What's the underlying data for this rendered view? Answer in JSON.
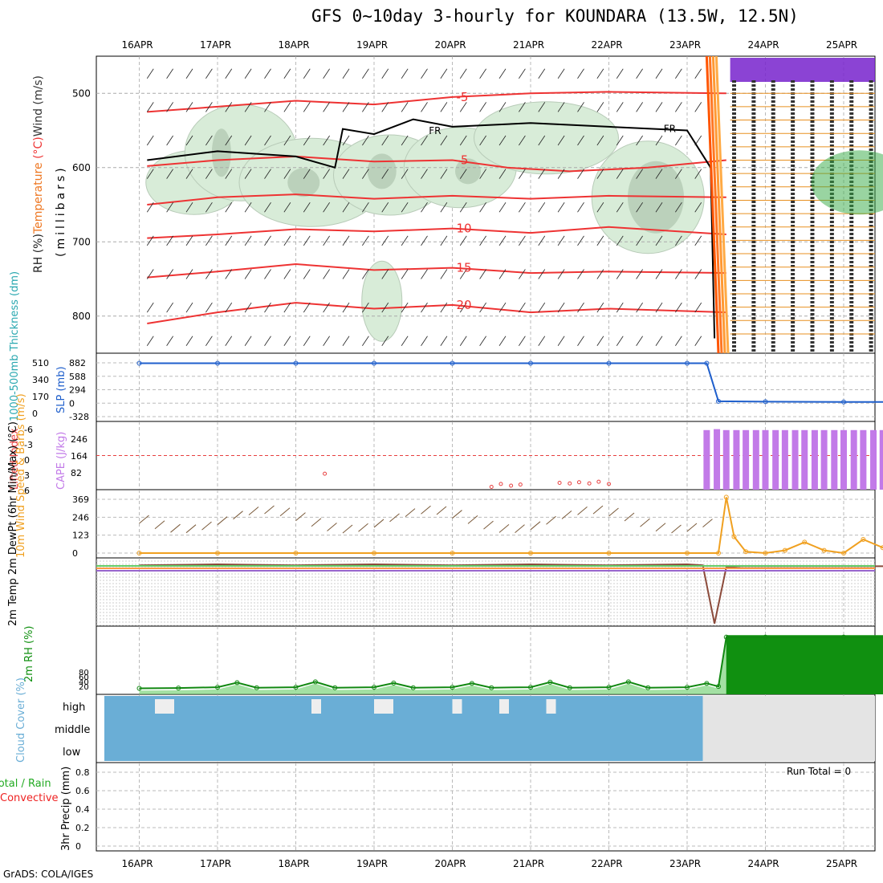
{
  "header": {
    "title": "GFS 0~10day 3-hourly for KOUNDARA (13.5W, 12.5N)",
    "credit": "GrADS: COLA/IGES"
  },
  "colors": {
    "temperature": "#ee3333",
    "freezing": "#000000",
    "rh_fill": "#d8ecd8",
    "rh_dark": "#a8c0a8",
    "slp": "#1f5fcc",
    "thickness": "#2aa8b0",
    "cape": "#c27ae8",
    "lifted_index": "#e84040",
    "wind_speed": "#f0a020",
    "barb": "#7a5a3a",
    "rh2m": "#109010",
    "cloud": "#6aaed6",
    "precip_total": "#22aa22",
    "precip_conv": "#ee2222"
  },
  "chart_data": [
    {
      "panel": "upper-air",
      "type": "contour",
      "x_ticks": [
        "16APR",
        "17APR",
        "18APR",
        "19APR",
        "20APR",
        "21APR",
        "22APR",
        "23APR",
        "24APR",
        "25APR"
      ],
      "y_label_parts": [
        {
          "text": "RH (%)",
          "color": "#222222",
          "bg": "#22bb22"
        },
        {
          "text": "Temperature",
          "color": "#ee7722"
        },
        {
          "text": " (°C)",
          "color": "#ee3333"
        },
        {
          "text": "Wind (m/s)",
          "color": "#333333"
        }
      ],
      "y_axis_title": "(millibars)",
      "y_ticks": [
        500,
        600,
        700,
        800
      ],
      "ylim": [
        450,
        850
      ],
      "x_days": [
        0,
        10
      ],
      "temperature_contours": [
        {
          "level": -5,
          "label": "-5",
          "points": [
            [
              0.1,
              525
            ],
            [
              1,
              518
            ],
            [
              2,
              510
            ],
            [
              3,
              515
            ],
            [
              4,
              505
            ],
            [
              5,
              500
            ],
            [
              6,
              498
            ],
            [
              7.5,
              500
            ]
          ]
        },
        {
          "level": -5,
          "label": "-5",
          "points": [
            [
              0.1,
              598
            ],
            [
              1,
              590
            ],
            [
              2,
              585
            ],
            [
              3,
              592
            ],
            [
              4,
              590
            ],
            [
              4.7,
              600
            ],
            [
              5.5,
              605
            ],
            [
              6.5,
              600
            ],
            [
              7.5,
              590
            ]
          ]
        },
        {
          "level": 0,
          "label": "",
          "points": [
            [
              0.1,
              650
            ],
            [
              1,
              640
            ],
            [
              2,
              636
            ],
            [
              3,
              642
            ],
            [
              4,
              638
            ],
            [
              5,
              642
            ],
            [
              6,
              638
            ],
            [
              7.5,
              640
            ]
          ]
        },
        {
          "level": 10,
          "label": "10",
          "points": [
            [
              0.1,
              695
            ],
            [
              1,
              690
            ],
            [
              2,
              683
            ],
            [
              3,
              686
            ],
            [
              4,
              682
            ],
            [
              5,
              688
            ],
            [
              6,
              680
            ],
            [
              7.5,
              690
            ]
          ]
        },
        {
          "level": 15,
          "label": "15",
          "points": [
            [
              0.1,
              748
            ],
            [
              1,
              740
            ],
            [
              2,
              730
            ],
            [
              3,
              738
            ],
            [
              4,
              735
            ],
            [
              5,
              742
            ],
            [
              6,
              740
            ],
            [
              7.5,
              742
            ]
          ]
        },
        {
          "level": 20,
          "label": "20",
          "points": [
            [
              0.1,
              810
            ],
            [
              1,
              795
            ],
            [
              2,
              782
            ],
            [
              3,
              790
            ],
            [
              4,
              785
            ],
            [
              5,
              795
            ],
            [
              6,
              790
            ],
            [
              7.5,
              795
            ]
          ]
        }
      ],
      "freezing_level": {
        "label": "FR",
        "points": [
          [
            0.1,
            590
          ],
          [
            1,
            578
          ],
          [
            2,
            585
          ],
          [
            2.5,
            600
          ],
          [
            2.6,
            548
          ],
          [
            3,
            555
          ],
          [
            3.5,
            535
          ],
          [
            4,
            545
          ],
          [
            5,
            540
          ],
          [
            6,
            545
          ],
          [
            7,
            550
          ],
          [
            7.3,
            600
          ],
          [
            7.35,
            830
          ]
        ]
      }
    },
    {
      "panel": "slp-thickness",
      "type": "line",
      "ylabel_left": "1000-500mb Thickness (dm)",
      "ylabel_slp": "SLP (mb)",
      "y_ticks_thickness": [
        "510",
        "340",
        "170",
        "0"
      ],
      "y_ticks_slp": [
        "882",
        "588",
        "294",
        "0",
        "-328"
      ],
      "series": [
        {
          "name": "SLP",
          "x": [
            0,
            1,
            2,
            3,
            4,
            5,
            6,
            7,
            7.25,
            7.4,
            8,
            9,
            10.2
          ],
          "values": [
            882,
            882,
            882,
            882,
            882,
            882,
            882,
            882,
            882,
            20,
            10,
            5,
            5
          ]
        }
      ],
      "ylim": [
        -328,
        1000
      ]
    },
    {
      "panel": "cape-li",
      "type": "bar",
      "ylabel_li": "Lifted Index",
      "ylabel_cape": "CAPE (J/kg)",
      "y_ticks_li": [
        "-6",
        "-3",
        "0",
        "3",
        "6"
      ],
      "y_ticks_cape": [
        "246",
        "164",
        "82"
      ],
      "cape_bar_days": [
        7.25,
        7.38,
        7.5,
        7.63,
        7.75,
        7.88,
        8.0,
        8.13,
        8.25,
        8.38,
        8.5,
        8.63,
        8.75,
        8.88,
        9.0,
        9.13,
        9.25,
        9.38,
        9.5,
        9.63,
        9.75,
        9.88,
        10.0,
        10.13,
        10.25
      ],
      "cape_values": [
        310,
        315,
        310,
        310,
        310,
        310,
        310,
        310,
        310,
        310,
        310,
        310,
        310,
        310,
        310,
        310,
        310,
        310,
        310,
        310,
        310,
        310,
        310,
        310,
        310
      ],
      "li_bump_days": [
        2.37,
        4.5,
        4.62,
        4.75,
        4.87,
        5.37,
        5.5,
        5.62,
        5.75,
        5.87,
        6.0
      ],
      "li_bump_values": [
        3.2,
        5.5,
        5.0,
        5.3,
        5.1,
        4.8,
        4.9,
        4.7,
        4.9,
        4.6,
        5.0
      ],
      "ylim_li": [
        6,
        -6
      ]
    },
    {
      "panel": "wind10m",
      "type": "line",
      "ylabel": "10m Wind Speed & Barbs (m/s)",
      "y_ticks": [
        "369",
        "246",
        "123",
        "0"
      ],
      "series": [
        {
          "name": "10m Wind Speed",
          "x": [
            0,
            1,
            2,
            3,
            4,
            5,
            6,
            7,
            7.4,
            7.5,
            7.6,
            7.75,
            8,
            8.25,
            8.5,
            8.75,
            9,
            9.25,
            9.5,
            9.75,
            10,
            10.25
          ],
          "values": [
            0,
            0,
            0,
            0,
            0,
            0,
            0,
            0,
            0,
            410,
            120,
            10,
            0,
            20,
            80,
            20,
            0,
            100,
            40,
            0,
            80,
            50
          ]
        }
      ],
      "ylim": [
        0,
        430
      ]
    },
    {
      "panel": "temp2m",
      "type": "line",
      "ylabel": "2m Temp 2m DewPt (6hr Min/Max) (°C)",
      "series": [
        {
          "name": "2m Temp",
          "x": [
            0,
            1,
            2,
            3,
            4,
            5,
            6,
            7,
            7.2,
            7.35,
            7.5,
            7.7,
            8,
            9,
            10.25
          ],
          "values": [
            30,
            31,
            30,
            31,
            30,
            31,
            30,
            31,
            30,
            -30,
            28,
            29,
            29,
            29,
            29
          ]
        }
      ]
    },
    {
      "panel": "rh2m",
      "type": "area",
      "ylabel": "2m RH (%)",
      "y_ticks": [
        "80",
        "60",
        "40",
        "20"
      ],
      "series": [
        {
          "name": "2m RH",
          "x": [
            0,
            0.5,
            1,
            1.25,
            1.5,
            2,
            2.25,
            2.5,
            3,
            3.25,
            3.5,
            4,
            4.25,
            4.5,
            5,
            5.25,
            5.5,
            6,
            6.25,
            6.5,
            7,
            7.25,
            7.4,
            7.5,
            8,
            9,
            10.25
          ],
          "values": [
            8,
            10,
            15,
            45,
            12,
            15,
            50,
            12,
            15,
            42,
            12,
            15,
            40,
            12,
            15,
            48,
            12,
            15,
            50,
            12,
            15,
            40,
            20,
            340,
            340,
            340,
            340
          ]
        }
      ],
      "ylim": [
        0,
        380
      ]
    },
    {
      "panel": "cloud",
      "type": "area",
      "ylabel": "Cloud Cover (%)",
      "levels": [
        "high",
        "middle",
        "low"
      ]
    },
    {
      "panel": "precip",
      "type": "line",
      "ylabel": "3hr Precip (mm)",
      "legend_total": "Total / Rain",
      "legend_conv": "Convective",
      "run_total": "Run Total = 0",
      "y_ticks": [
        "0.8",
        "0.6",
        "0.4",
        "0.2",
        "0"
      ],
      "ylim": [
        0,
        1
      ]
    }
  ]
}
